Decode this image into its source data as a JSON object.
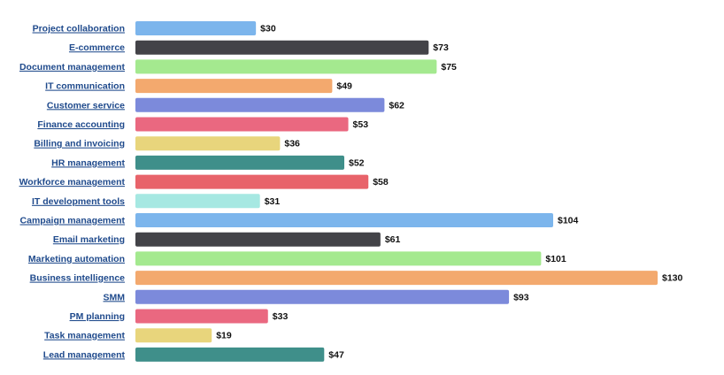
{
  "chart_data": {
    "type": "bar",
    "orientation": "horizontal",
    "title": "",
    "xlabel": "",
    "ylabel": "",
    "grid": false,
    "legend": "none",
    "value_prefix": "$",
    "xlim": [
      0,
      130
    ],
    "categories": [
      "Project collaboration",
      "E-commerce",
      "Document management",
      "IT communication",
      "Customer service",
      "Finance accounting",
      "Billing and invoicing",
      "HR management",
      "Workforce management",
      "IT development tools",
      "Campaign management",
      "Email marketing",
      "Marketing automation",
      "Business intelligence",
      "SMM",
      "PM planning",
      "Task management",
      "Lead management"
    ],
    "values": [
      30,
      73,
      75,
      49,
      62,
      53,
      36,
      52,
      58,
      31,
      104,
      61,
      101,
      130,
      93,
      33,
      19,
      47
    ],
    "value_labels": [
      "$30",
      "$73",
      "$75",
      "$49",
      "$62",
      "$53",
      "$36",
      "$52",
      "$58",
      "$31",
      "$104",
      "$61",
      "$101",
      "$130",
      "$93",
      "$33",
      "$19",
      "$47"
    ],
    "colors": [
      "#7cb5ec",
      "#434348",
      "#a4e98f",
      "#f3a96e",
      "#7c8adb",
      "#ea6880",
      "#e8d57c",
      "#3f8f8a",
      "#e8636a",
      "#a6e8e2",
      "#7cb5ec",
      "#434348",
      "#a4e98f",
      "#f3a96e",
      "#7c8adb",
      "#ea6880",
      "#e8d57c",
      "#3f8f8a"
    ]
  }
}
